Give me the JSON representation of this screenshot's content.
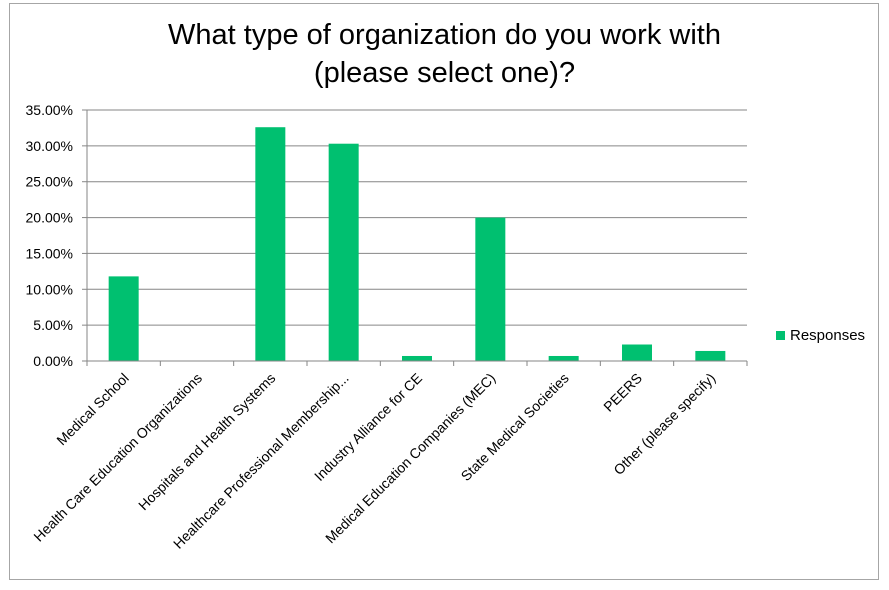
{
  "chart_data": {
    "type": "bar",
    "title_lines": [
      "What type of organization do you work with",
      "(please select one)?"
    ],
    "categories": [
      "Medical School",
      "Health Care Education Organizations",
      "Hospitals and Health Systems",
      "Healthcare Professional Membership...",
      "Industry Alliance for CE",
      "Medical Education Companies (MEC)",
      "State Medical Societies",
      "PEERS",
      "Other (please specify)"
    ],
    "series": [
      {
        "name": "Responses",
        "values": [
          11.8,
          0.0,
          32.6,
          30.3,
          0.7,
          20.0,
          0.7,
          2.3,
          1.4
        ],
        "color": "#00c070"
      }
    ],
    "yticks": [
      "0.00%",
      "5.00%",
      "10.00%",
      "15.00%",
      "20.00%",
      "25.00%",
      "30.00%",
      "35.00%"
    ],
    "ylim": [
      0,
      35
    ],
    "grid": true,
    "legend_position": "right"
  }
}
